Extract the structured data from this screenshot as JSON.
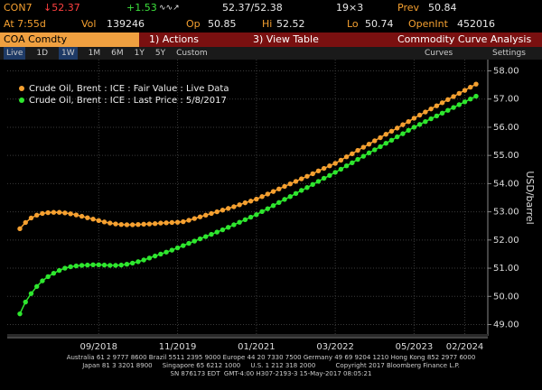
{
  "header": {
    "ticker": "CON7",
    "last": "↓52.37",
    "change": "+1.53",
    "bid_ask": "52.37/52.38",
    "size": "19×3",
    "prev_label": "Prev",
    "prev": "50.84",
    "time": "At 7:55d",
    "vol_label": "Vol",
    "vol": "139246",
    "open_label": "Op",
    "open": "50.85",
    "high_label": "Hi",
    "high": "52.52",
    "low_label": "Lo",
    "low": "50.74",
    "oi_label": "OpenInt",
    "oi": "452016"
  },
  "menu": {
    "security": "COA Comdty",
    "actions": "1) Actions",
    "view_table": "3) View Table",
    "function": "Commodity Curve Analysis"
  },
  "toolbar": {
    "ranges": [
      "Live",
      "1D",
      "1W",
      "1M",
      "6M",
      "1Y",
      "5Y",
      "Custom"
    ],
    "curves": "Curves",
    "settings": "Settings"
  },
  "chart_data": {
    "type": "scatter-line",
    "x": [
      "07/2017",
      "08/2017",
      "09/2017",
      "10/2017",
      "11/2017",
      "12/2017",
      "01/2018",
      "02/2018",
      "03/2018",
      "04/2018",
      "05/2018",
      "06/2018",
      "07/2018",
      "08/2018",
      "09/2018",
      "10/2018",
      "11/2018",
      "12/2018",
      "01/2019",
      "02/2019",
      "03/2019",
      "04/2019",
      "05/2019",
      "06/2019",
      "07/2019",
      "08/2019",
      "09/2019",
      "10/2019",
      "11/2019",
      "12/2019",
      "01/2020",
      "02/2020",
      "03/2020",
      "04/2020",
      "05/2020",
      "06/2020",
      "07/2020",
      "08/2020",
      "09/2020",
      "10/2020",
      "11/2020",
      "12/2020",
      "01/2021",
      "02/2021",
      "03/2021",
      "04/2021",
      "05/2021",
      "06/2021",
      "07/2021",
      "08/2021",
      "09/2021",
      "10/2021",
      "11/2021",
      "12/2021",
      "01/2022",
      "02/2022",
      "03/2022",
      "04/2022",
      "05/2022",
      "06/2022",
      "07/2022",
      "08/2022",
      "09/2022",
      "10/2022",
      "11/2022",
      "12/2022",
      "01/2023",
      "02/2023",
      "03/2023",
      "04/2023",
      "05/2023",
      "06/2023",
      "07/2023",
      "08/2023",
      "09/2023",
      "10/2023",
      "11/2023",
      "12/2023",
      "01/2024",
      "02/2024",
      "03/2024",
      "04/2024"
    ],
    "xtick_labels": [
      "09/2018",
      "11/2019",
      "01/2021",
      "03/2022",
      "05/2023",
      "02/2024"
    ],
    "y_label": "USD/barrel",
    "ylim": [
      48.6,
      58.4
    ],
    "yticks": [
      {
        "value": 49,
        "label": "49.00"
      },
      {
        "value": 50,
        "label": "50.00"
      },
      {
        "value": 51,
        "label": "51.00"
      },
      {
        "value": 52,
        "label": "52.00"
      },
      {
        "value": 53,
        "label": "53.00"
      },
      {
        "value": 54,
        "label": "54.00"
      },
      {
        "value": 55,
        "label": "55.00"
      },
      {
        "value": 56,
        "label": "56.00"
      },
      {
        "value": 57,
        "label": "57.00"
      },
      {
        "value": 58,
        "label": "58.00"
      }
    ],
    "grid": true,
    "series": [
      {
        "name": "Crude Oil, Brent : ICE : Fair Value : Live Data",
        "color": "#f5a030",
        "values": [
          52.4,
          52.62,
          52.78,
          52.88,
          52.94,
          52.97,
          52.98,
          52.98,
          52.96,
          52.93,
          52.89,
          52.84,
          52.79,
          52.74,
          52.69,
          52.64,
          52.6,
          52.57,
          52.55,
          52.54,
          52.54,
          52.55,
          52.56,
          52.57,
          52.58,
          52.6,
          52.61,
          52.62,
          52.63,
          52.65,
          52.7,
          52.76,
          52.82,
          52.88,
          52.94,
          53.0,
          53.06,
          53.12,
          53.18,
          53.25,
          53.32,
          53.38,
          53.45,
          53.54,
          53.63,
          53.72,
          53.81,
          53.9,
          53.99,
          54.08,
          54.17,
          54.26,
          54.35,
          54.45,
          54.54,
          54.63,
          54.72,
          54.83,
          54.95,
          55.06,
          55.18,
          55.29,
          55.4,
          55.52,
          55.63,
          55.75,
          55.86,
          55.97,
          56.09,
          56.2,
          56.32,
          56.43,
          56.54,
          56.65,
          56.76,
          56.87,
          56.98,
          57.09,
          57.2,
          57.31,
          57.42,
          57.53
        ]
      },
      {
        "name": "Crude Oil, Brent : ICE : Last Price : 5/8/2017",
        "color": "#2ee62e",
        "values": [
          49.38,
          49.8,
          50.1,
          50.35,
          50.55,
          50.7,
          50.82,
          50.92,
          51.0,
          51.05,
          51.08,
          51.1,
          51.11,
          51.12,
          51.12,
          51.11,
          51.1,
          51.1,
          51.11,
          51.14,
          51.18,
          51.23,
          51.29,
          51.36,
          51.43,
          51.5,
          51.57,
          51.64,
          51.72,
          51.8,
          51.88,
          51.96,
          52.04,
          52.12,
          52.2,
          52.28,
          52.36,
          52.45,
          52.54,
          52.63,
          52.72,
          52.81,
          52.9,
          53.01,
          53.11,
          53.22,
          53.33,
          53.44,
          53.54,
          53.65,
          53.76,
          53.86,
          53.97,
          54.08,
          54.19,
          54.29,
          54.4,
          54.51,
          54.63,
          54.74,
          54.86,
          54.97,
          55.09,
          55.2,
          55.31,
          55.43,
          55.54,
          55.66,
          55.77,
          55.89,
          56.0,
          56.1,
          56.2,
          56.3,
          56.4,
          56.5,
          56.6,
          56.7,
          56.8,
          56.9,
          57.0,
          57.1
        ]
      }
    ]
  },
  "footer": {
    "line1": "Australia 61 2 9777 8600 Brazil 5511 2395 9000 Europe 44 20 7330 7500 Germany 49 69 9204 1210 Hong Kong 852 2977 6000",
    "line2": "Japan 81 3 3201 8900     Singapore 65 6212 1000     U.S. 1 212 318 2000          Copyright 2017 Bloomberg Finance L.P.",
    "line3": "SN 876173 EDT  GMT-4:00 H307-2193-3 15-May-2017 08:05:21"
  }
}
